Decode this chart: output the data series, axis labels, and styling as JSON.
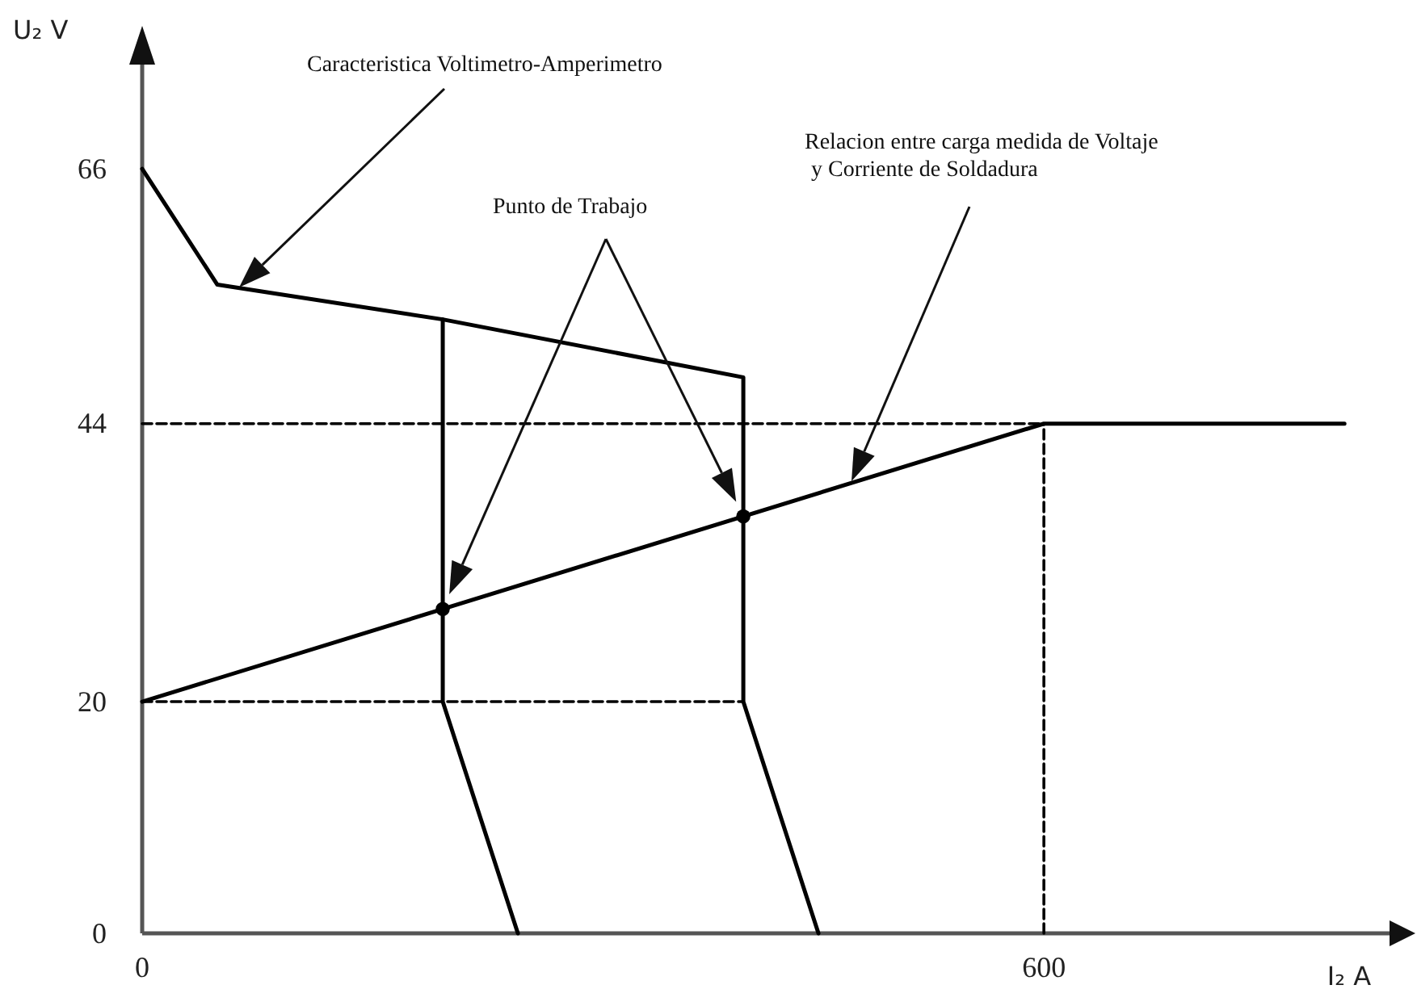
{
  "chart_data": {
    "type": "line",
    "xlabel": "I₂ A",
    "ylabel": "U₂ V",
    "xlim": [
      0,
      830
    ],
    "ylim": [
      0,
      75
    ],
    "xticks": [
      0,
      600
    ],
    "yticks": [
      0,
      20,
      44,
      66
    ],
    "series": [
      {
        "color": "#000000",
        "x": [
          0,
          50,
          200,
          200,
          250
        ],
        "values": [
          66,
          56,
          53,
          20,
          0
        ]
      },
      {
        "color": "#000000",
        "x": [
          200,
          400,
          400,
          450
        ],
        "values": [
          53,
          48,
          20,
          0
        ]
      },
      {
        "color": "#000000",
        "x": [
          0,
          600,
          800
        ],
        "values": [
          20,
          44,
          44
        ]
      },
      {
        "color": "#000000",
        "line_style": "dashed",
        "x": [
          0,
          600
        ],
        "values": [
          44,
          44
        ]
      },
      {
        "color": "#000000",
        "line_style": "dashed",
        "x": [
          0,
          400
        ],
        "values": [
          20,
          20
        ]
      },
      {
        "color": "#000000",
        "line_style": "dashed",
        "x": [
          600,
          600
        ],
        "values": [
          0,
          44
        ]
      },
      {
        "type": "scatter",
        "color": "#000000",
        "marker": "circle",
        "x": [
          200,
          400
        ],
        "values": [
          28,
          36
        ]
      }
    ],
    "annotations": [
      "Caracteristica Voltimetro-Amperimetro",
      "Punto de Trabajo",
      "Relacion entre carga medida de Voltaje\ny Corriente de Soldadura"
    ]
  }
}
